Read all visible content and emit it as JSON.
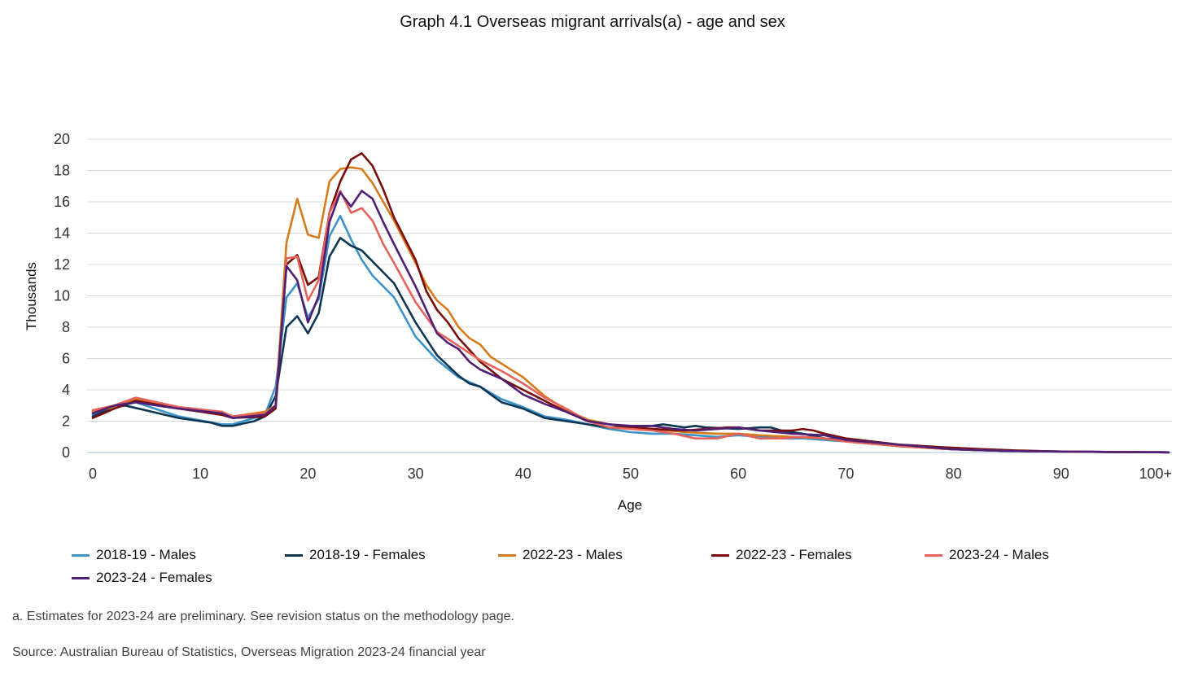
{
  "title": "Graph 4.1 Overseas migrant arrivals(a) - age and sex",
  "footnote": "a. Estimates for 2023-24 are preliminary. See revision status on the methodology page.",
  "source": "Source: Australian Bureau of Statistics, Overseas Migration 2023-24 financial year",
  "chart_data": {
    "type": "line",
    "title": "Graph 4.1 Overseas migrant arrivals(a) - age and sex",
    "xlabel": "Age",
    "ylabel": "Thousands",
    "ylim": [
      0,
      20
    ],
    "yticks": [
      "0",
      "2",
      "4",
      "6",
      "8",
      "10",
      "12",
      "14",
      "16",
      "18",
      "20"
    ],
    "xtick_values": [
      0,
      10,
      20,
      30,
      40,
      50,
      60,
      70,
      80,
      90,
      100
    ],
    "xtick_labels": [
      "0",
      "10",
      "20",
      "30",
      "40",
      "50",
      "60",
      "70",
      "80",
      "90",
      "100+"
    ],
    "grid": true,
    "legend_position": "bottom",
    "series": [
      {
        "name": "2018-19 - Males",
        "color": "#3b93c8",
        "anchors": [
          [
            0,
            2.4
          ],
          [
            2,
            2.9
          ],
          [
            4,
            3.2
          ],
          [
            8,
            2.3
          ],
          [
            12,
            1.8
          ],
          [
            13,
            1.8
          ],
          [
            16,
            2.4
          ],
          [
            17,
            4.2
          ],
          [
            18,
            9.9
          ],
          [
            19,
            10.8
          ],
          [
            20,
            8.6
          ],
          [
            21,
            9.8
          ],
          [
            22,
            13.8
          ],
          [
            23,
            15.1
          ],
          [
            24,
            13.6
          ],
          [
            25,
            12.3
          ],
          [
            26,
            11.3
          ],
          [
            28,
            9.9
          ],
          [
            30,
            7.4
          ],
          [
            32,
            5.9
          ],
          [
            34,
            4.8
          ],
          [
            36,
            4.2
          ],
          [
            38,
            3.4
          ],
          [
            40,
            2.9
          ],
          [
            42,
            2.3
          ],
          [
            44,
            2.1
          ],
          [
            46,
            1.8
          ],
          [
            48,
            1.5
          ],
          [
            50,
            1.3
          ],
          [
            52,
            1.2
          ],
          [
            54,
            1.2
          ],
          [
            56,
            1.1
          ],
          [
            58,
            1.0
          ],
          [
            60,
            1.1
          ],
          [
            62,
            1.0
          ],
          [
            64,
            0.9
          ],
          [
            66,
            0.9
          ],
          [
            68,
            0.8
          ],
          [
            70,
            0.7
          ],
          [
            75,
            0.4
          ],
          [
            80,
            0.2
          ],
          [
            85,
            0.1
          ],
          [
            90,
            0.06
          ],
          [
            95,
            0.03
          ],
          [
            100,
            0.01
          ]
        ]
      },
      {
        "name": "2018-19 - Females",
        "color": "#0c3653",
        "anchors": [
          [
            0,
            2.3
          ],
          [
            2,
            2.9
          ],
          [
            3,
            3.0
          ],
          [
            8,
            2.2
          ],
          [
            11,
            1.9
          ],
          [
            12,
            1.7
          ],
          [
            13,
            1.7
          ],
          [
            15,
            2.0
          ],
          [
            16,
            2.3
          ],
          [
            17,
            3.6
          ],
          [
            18,
            8.0
          ],
          [
            19,
            8.7
          ],
          [
            20,
            7.6
          ],
          [
            21,
            8.9
          ],
          [
            22,
            12.5
          ],
          [
            23,
            13.7
          ],
          [
            24,
            13.2
          ],
          [
            25,
            12.9
          ],
          [
            26,
            12.2
          ],
          [
            28,
            10.8
          ],
          [
            30,
            8.3
          ],
          [
            32,
            6.2
          ],
          [
            34,
            4.9
          ],
          [
            35,
            4.4
          ],
          [
            36,
            4.2
          ],
          [
            38,
            3.2
          ],
          [
            40,
            2.8
          ],
          [
            42,
            2.2
          ],
          [
            44,
            2.0
          ],
          [
            46,
            1.8
          ],
          [
            48,
            1.6
          ],
          [
            50,
            1.6
          ],
          [
            52,
            1.7
          ],
          [
            53,
            1.8
          ],
          [
            54,
            1.7
          ],
          [
            55,
            1.6
          ],
          [
            56,
            1.7
          ],
          [
            57,
            1.6
          ],
          [
            60,
            1.5
          ],
          [
            62,
            1.6
          ],
          [
            63,
            1.6
          ],
          [
            64,
            1.4
          ],
          [
            66,
            1.2
          ],
          [
            68,
            0.9
          ],
          [
            70,
            0.8
          ],
          [
            75,
            0.4
          ],
          [
            80,
            0.2
          ],
          [
            85,
            0.1
          ],
          [
            90,
            0.06
          ],
          [
            95,
            0.03
          ],
          [
            100,
            0.01
          ]
        ]
      },
      {
        "name": "2022-23 - Males",
        "color": "#d67b1b",
        "anchors": [
          [
            0,
            2.6
          ],
          [
            2,
            2.9
          ],
          [
            4,
            3.4
          ],
          [
            8,
            2.9
          ],
          [
            12,
            2.5
          ],
          [
            13,
            2.3
          ],
          [
            16,
            2.6
          ],
          [
            17,
            3.0
          ],
          [
            18,
            13.4
          ],
          [
            19,
            16.2
          ],
          [
            20,
            13.9
          ],
          [
            21,
            13.7
          ],
          [
            22,
            17.3
          ],
          [
            23,
            18.1
          ],
          [
            24,
            18.2
          ],
          [
            25,
            18.1
          ],
          [
            26,
            17.2
          ],
          [
            28,
            14.8
          ],
          [
            30,
            12.1
          ],
          [
            31,
            10.7
          ],
          [
            32,
            9.7
          ],
          [
            33,
            9.1
          ],
          [
            34,
            8.0
          ],
          [
            35,
            7.3
          ],
          [
            36,
            6.9
          ],
          [
            37,
            6.1
          ],
          [
            40,
            4.8
          ],
          [
            42,
            3.6
          ],
          [
            44,
            2.7
          ],
          [
            46,
            2.1
          ],
          [
            48,
            1.8
          ],
          [
            50,
            1.6
          ],
          [
            52,
            1.5
          ],
          [
            55,
            1.3
          ],
          [
            58,
            1.2
          ],
          [
            60,
            1.2
          ],
          [
            62,
            1.1
          ],
          [
            65,
            1.0
          ],
          [
            68,
            0.9
          ],
          [
            70,
            0.7
          ],
          [
            75,
            0.4
          ],
          [
            80,
            0.2
          ],
          [
            85,
            0.1
          ],
          [
            90,
            0.06
          ],
          [
            95,
            0.03
          ],
          [
            100,
            0.01
          ]
        ]
      },
      {
        "name": "2022-23 - Females",
        "color": "#7a0c0c",
        "anchors": [
          [
            0,
            2.2
          ],
          [
            2,
            2.8
          ],
          [
            4,
            3.3
          ],
          [
            8,
            2.8
          ],
          [
            12,
            2.4
          ],
          [
            13,
            2.2
          ],
          [
            16,
            2.3
          ],
          [
            17,
            2.8
          ],
          [
            18,
            12.0
          ],
          [
            19,
            12.6
          ],
          [
            20,
            10.7
          ],
          [
            21,
            11.2
          ],
          [
            22,
            15.3
          ],
          [
            23,
            17.3
          ],
          [
            24,
            18.7
          ],
          [
            25,
            19.1
          ],
          [
            26,
            18.3
          ],
          [
            27,
            16.8
          ],
          [
            28,
            15.0
          ],
          [
            30,
            12.3
          ],
          [
            31,
            10.3
          ],
          [
            32,
            9.1
          ],
          [
            33,
            8.3
          ],
          [
            34,
            7.3
          ],
          [
            36,
            5.8
          ],
          [
            38,
            4.7
          ],
          [
            40,
            4.0
          ],
          [
            42,
            3.3
          ],
          [
            44,
            2.6
          ],
          [
            46,
            2.0
          ],
          [
            48,
            1.8
          ],
          [
            50,
            1.6
          ],
          [
            52,
            1.5
          ],
          [
            55,
            1.4
          ],
          [
            57,
            1.5
          ],
          [
            59,
            1.6
          ],
          [
            60,
            1.6
          ],
          [
            62,
            1.4
          ],
          [
            65,
            1.4
          ],
          [
            66,
            1.5
          ],
          [
            67,
            1.4
          ],
          [
            68,
            1.2
          ],
          [
            70,
            0.9
          ],
          [
            75,
            0.5
          ],
          [
            80,
            0.3
          ],
          [
            85,
            0.15
          ],
          [
            90,
            0.06
          ],
          [
            95,
            0.03
          ],
          [
            100,
            0.01
          ]
        ]
      },
      {
        "name": "2023-24 - Males",
        "color": "#e8625c",
        "anchors": [
          [
            0,
            2.7
          ],
          [
            2,
            3.0
          ],
          [
            4,
            3.5
          ],
          [
            8,
            2.9
          ],
          [
            12,
            2.6
          ],
          [
            13,
            2.3
          ],
          [
            16,
            2.5
          ],
          [
            17,
            3.0
          ],
          [
            18,
            12.4
          ],
          [
            19,
            12.5
          ],
          [
            20,
            9.7
          ],
          [
            21,
            11.0
          ],
          [
            22,
            15.3
          ],
          [
            23,
            16.7
          ],
          [
            24,
            15.3
          ],
          [
            25,
            15.6
          ],
          [
            26,
            14.8
          ],
          [
            27,
            13.3
          ],
          [
            28,
            12.1
          ],
          [
            30,
            9.6
          ],
          [
            32,
            7.7
          ],
          [
            34,
            6.8
          ],
          [
            36,
            5.9
          ],
          [
            38,
            5.2
          ],
          [
            40,
            4.4
          ],
          [
            42,
            3.5
          ],
          [
            44,
            2.8
          ],
          [
            46,
            2.0
          ],
          [
            48,
            1.6
          ],
          [
            50,
            1.5
          ],
          [
            52,
            1.4
          ],
          [
            54,
            1.2
          ],
          [
            56,
            0.9
          ],
          [
            58,
            0.9
          ],
          [
            60,
            1.2
          ],
          [
            62,
            0.9
          ],
          [
            64,
            0.9
          ],
          [
            66,
            1.0
          ],
          [
            68,
            0.9
          ],
          [
            70,
            0.7
          ],
          [
            75,
            0.4
          ],
          [
            80,
            0.2
          ],
          [
            85,
            0.1
          ],
          [
            90,
            0.06
          ],
          [
            95,
            0.03
          ],
          [
            100,
            0.01
          ]
        ]
      },
      {
        "name": "2023-24 - Females",
        "color": "#4f1f74",
        "anchors": [
          [
            0,
            2.5
          ],
          [
            2,
            3.0
          ],
          [
            4,
            3.2
          ],
          [
            8,
            2.8
          ],
          [
            12,
            2.5
          ],
          [
            13,
            2.2
          ],
          [
            16,
            2.4
          ],
          [
            17,
            3.0
          ],
          [
            18,
            11.9
          ],
          [
            19,
            11.0
          ],
          [
            20,
            8.3
          ],
          [
            21,
            10.0
          ],
          [
            22,
            14.7
          ],
          [
            23,
            16.6
          ],
          [
            24,
            15.7
          ],
          [
            25,
            16.7
          ],
          [
            26,
            16.2
          ],
          [
            27,
            14.7
          ],
          [
            28,
            13.3
          ],
          [
            30,
            10.6
          ],
          [
            32,
            7.6
          ],
          [
            33,
            7.0
          ],
          [
            34,
            6.6
          ],
          [
            35,
            5.8
          ],
          [
            36,
            5.3
          ],
          [
            38,
            4.7
          ],
          [
            40,
            3.7
          ],
          [
            42,
            3.1
          ],
          [
            44,
            2.6
          ],
          [
            46,
            2.0
          ],
          [
            48,
            1.8
          ],
          [
            50,
            1.7
          ],
          [
            52,
            1.7
          ],
          [
            54,
            1.5
          ],
          [
            56,
            1.4
          ],
          [
            58,
            1.5
          ],
          [
            60,
            1.6
          ],
          [
            62,
            1.4
          ],
          [
            65,
            1.2
          ],
          [
            68,
            1.1
          ],
          [
            70,
            0.8
          ],
          [
            75,
            0.5
          ],
          [
            80,
            0.2
          ],
          [
            85,
            0.1
          ],
          [
            90,
            0.06
          ],
          [
            95,
            0.03
          ],
          [
            100,
            0.01
          ]
        ]
      }
    ]
  }
}
